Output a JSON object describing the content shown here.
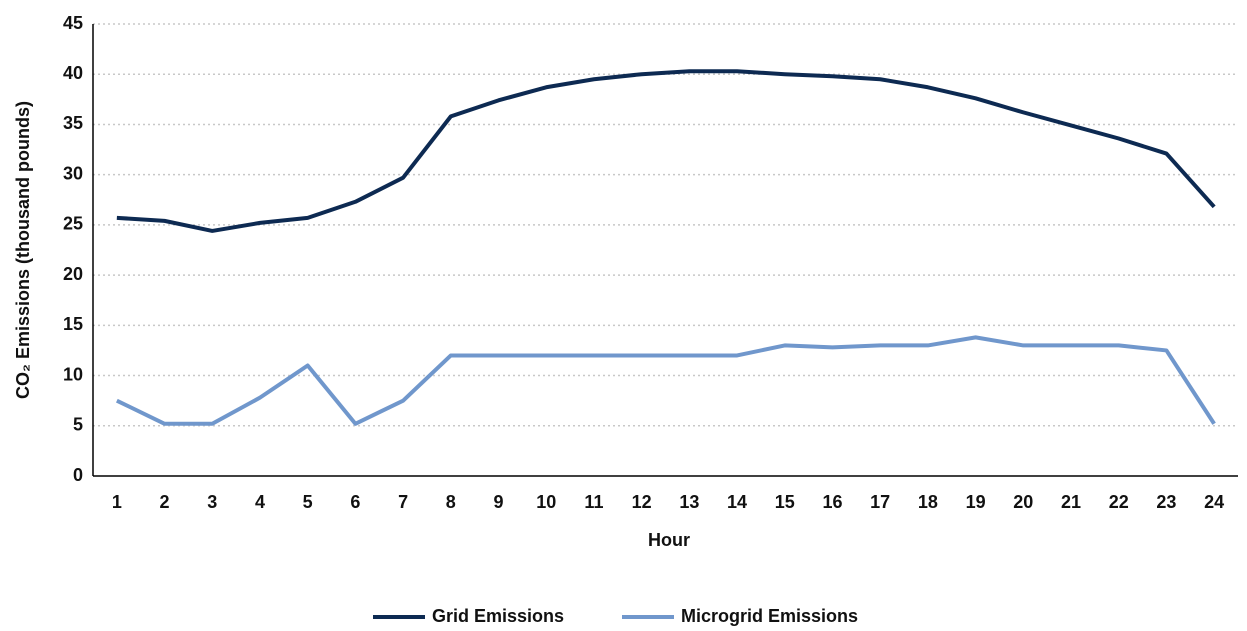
{
  "chart_data": {
    "type": "line",
    "x_label": "Hour",
    "y_label": "CO₂ Emissions (thousand pounds)",
    "categories": [
      "1",
      "2",
      "3",
      "4",
      "5",
      "6",
      "7",
      "8",
      "9",
      "10",
      "11",
      "12",
      "13",
      "14",
      "15",
      "16",
      "17",
      "18",
      "19",
      "20",
      "21",
      "22",
      "23",
      "24"
    ],
    "series": [
      {
        "name": "Grid Emissions",
        "color": "#0d2a52",
        "values": [
          25.7,
          25.4,
          24.4,
          25.2,
          25.7,
          27.3,
          29.7,
          35.8,
          37.4,
          38.7,
          39.5,
          40.0,
          40.3,
          40.3,
          40.0,
          39.8,
          39.5,
          38.7,
          37.6,
          36.2,
          34.9,
          33.6,
          32.1,
          26.8
        ]
      },
      {
        "name": "Microgrid Emissions",
        "color": "#7097cc",
        "values": [
          7.5,
          5.2,
          5.2,
          7.8,
          11.0,
          5.2,
          7.5,
          12.0,
          12.0,
          12.0,
          12.0,
          12.0,
          12.0,
          12.0,
          13.0,
          12.8,
          13.0,
          13.0,
          13.8,
          13.0,
          13.0,
          13.0,
          12.5,
          5.2
        ]
      }
    ],
    "ylim": [
      0,
      45
    ],
    "yticks": [
      0,
      5,
      10,
      15,
      20,
      25,
      30,
      35,
      40,
      45
    ],
    "grid": true,
    "legend": "bottom"
  }
}
